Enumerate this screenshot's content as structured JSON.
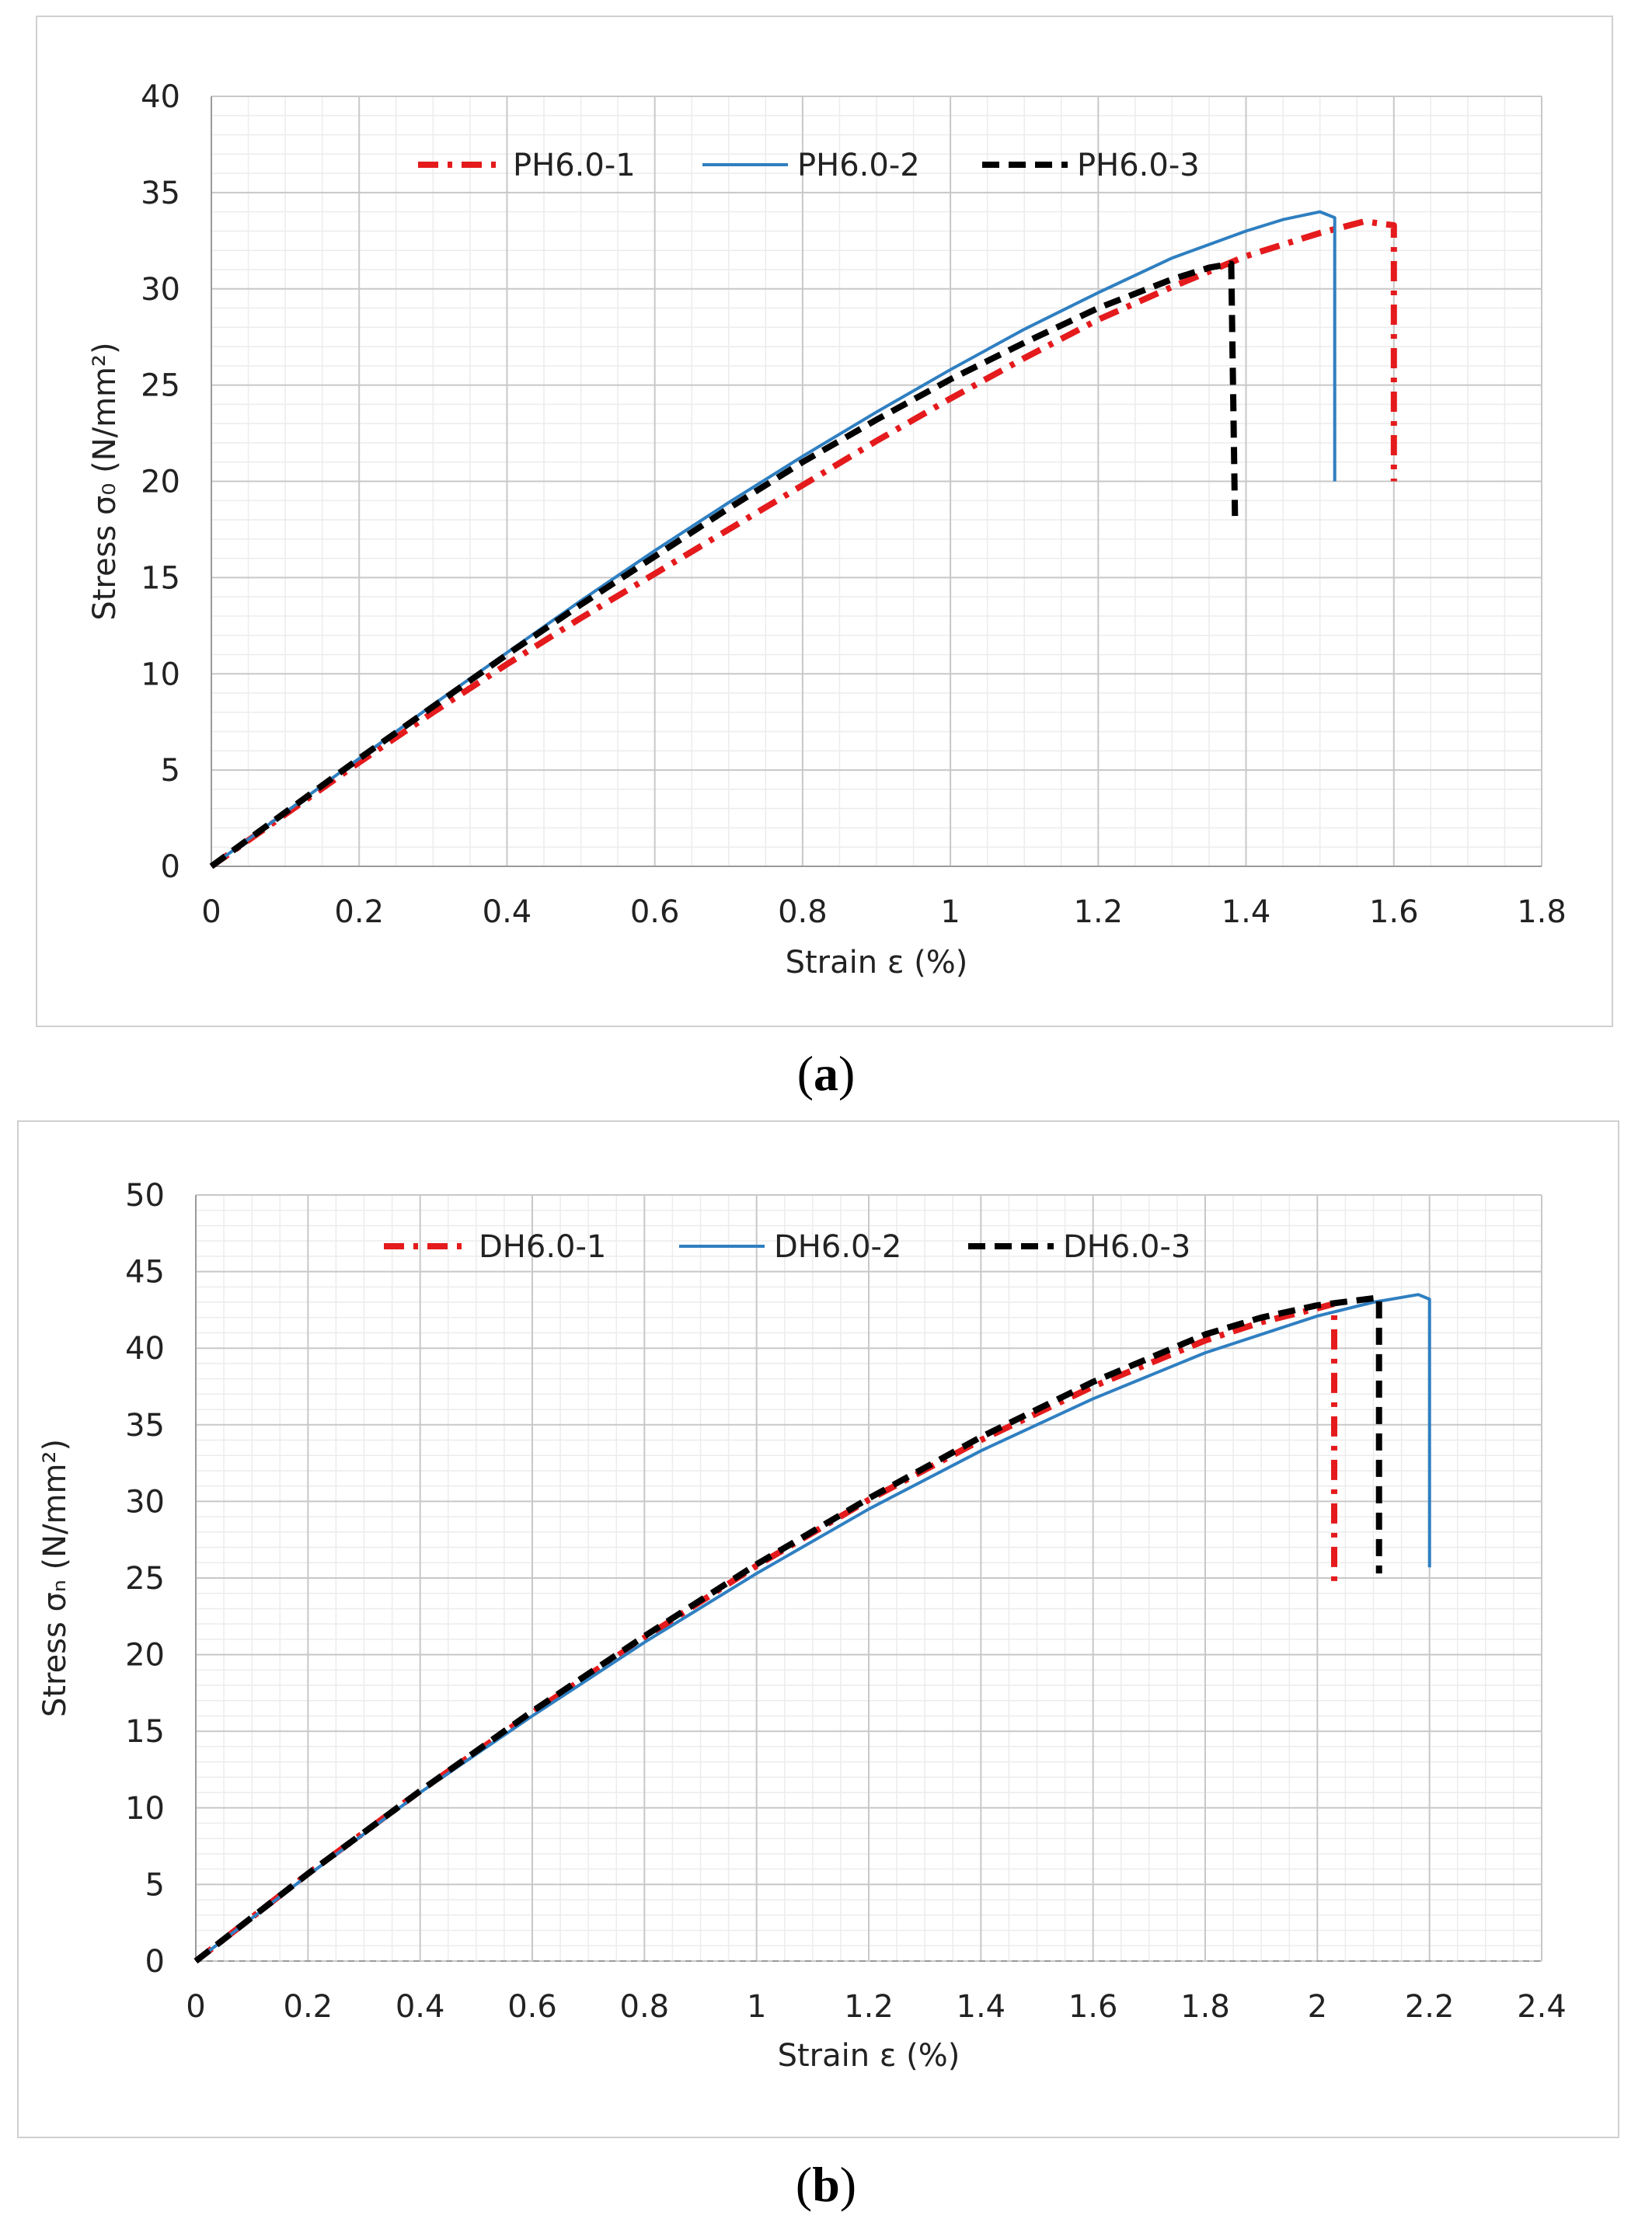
{
  "figure": {
    "caption_a": "a",
    "caption_b": "b"
  },
  "chart_data": [
    {
      "id": "a",
      "type": "line",
      "title": "",
      "xlabel": "Strain ε (%)",
      "ylabel": "Stress σ₀ (N/mm²)",
      "xlim": [
        0,
        1.8
      ],
      "ylim": [
        0,
        40
      ],
      "xticks": [
        "0",
        "0.2",
        "0.4",
        "0.6",
        "0.8",
        "1",
        "1.2",
        "1.4",
        "1.6",
        "1.8"
      ],
      "yticks": [
        "0",
        "5",
        "10",
        "15",
        "20",
        "25",
        "30",
        "35",
        "40"
      ],
      "xtick_values": [
        0,
        0.2,
        0.4,
        0.6,
        0.8,
        1.0,
        1.2,
        1.4,
        1.6,
        1.8
      ],
      "ytick_values": [
        0,
        5,
        10,
        15,
        20,
        25,
        30,
        35,
        40
      ],
      "minor_x_step": 0.05,
      "minor_y_step": 1,
      "grid": true,
      "legend_position": "top",
      "series": [
        {
          "name": "PH6.0-1",
          "color": "#e41a1c",
          "dash": "dashdot",
          "points": [
            [
              0,
              0
            ],
            [
              0.1,
              2.7
            ],
            [
              0.2,
              5.4
            ],
            [
              0.3,
              8.0
            ],
            [
              0.4,
              10.5
            ],
            [
              0.5,
              12.9
            ],
            [
              0.6,
              15.2
            ],
            [
              0.7,
              17.5
            ],
            [
              0.8,
              19.8
            ],
            [
              0.9,
              22.1
            ],
            [
              1.0,
              24.3
            ],
            [
              1.1,
              26.4
            ],
            [
              1.2,
              28.4
            ],
            [
              1.3,
              30.1
            ],
            [
              1.4,
              31.7
            ],
            [
              1.5,
              32.9
            ],
            [
              1.56,
              33.5
            ],
            [
              1.6,
              33.3
            ],
            [
              1.6,
              20.0
            ]
          ]
        },
        {
          "name": "PH6.0-2",
          "color": "#2f7fc1",
          "dash": "solid",
          "points": [
            [
              0,
              0
            ],
            [
              0.1,
              2.8
            ],
            [
              0.2,
              5.6
            ],
            [
              0.3,
              8.4
            ],
            [
              0.4,
              11.1
            ],
            [
              0.5,
              13.8
            ],
            [
              0.6,
              16.4
            ],
            [
              0.7,
              18.9
            ],
            [
              0.8,
              21.3
            ],
            [
              0.9,
              23.6
            ],
            [
              1.0,
              25.8
            ],
            [
              1.1,
              27.9
            ],
            [
              1.2,
              29.8
            ],
            [
              1.3,
              31.6
            ],
            [
              1.4,
              33.0
            ],
            [
              1.45,
              33.6
            ],
            [
              1.5,
              34.0
            ],
            [
              1.52,
              33.7
            ],
            [
              1.52,
              20.0
            ]
          ]
        },
        {
          "name": "PH6.0-3",
          "color": "#000000",
          "dash": "dash",
          "points": [
            [
              0,
              0
            ],
            [
              0.1,
              2.8
            ],
            [
              0.2,
              5.6
            ],
            [
              0.3,
              8.3
            ],
            [
              0.4,
              11.0
            ],
            [
              0.5,
              13.6
            ],
            [
              0.6,
              16.1
            ],
            [
              0.7,
              18.6
            ],
            [
              0.8,
              21.0
            ],
            [
              0.9,
              23.2
            ],
            [
              1.0,
              25.3
            ],
            [
              1.1,
              27.2
            ],
            [
              1.2,
              29.0
            ],
            [
              1.3,
              30.5
            ],
            [
              1.35,
              31.1
            ],
            [
              1.38,
              31.3
            ],
            [
              1.385,
              18.2
            ]
          ]
        }
      ]
    },
    {
      "id": "b",
      "type": "line",
      "title": "",
      "xlabel": "Strain ε (%)",
      "ylabel": "Stress σₙ (N/mm²)",
      "xlim": [
        0,
        2.4
      ],
      "ylim": [
        0,
        50
      ],
      "xticks": [
        "0",
        "0.2",
        "0.4",
        "0.6",
        "0.8",
        "1",
        "1.2",
        "1.4",
        "1.6",
        "1.8",
        "2",
        "2.2",
        "2.4"
      ],
      "yticks": [
        "0",
        "5",
        "10",
        "15",
        "20",
        "25",
        "30",
        "35",
        "40",
        "45",
        "50"
      ],
      "xtick_values": [
        0,
        0.2,
        0.4,
        0.6,
        0.8,
        1.0,
        1.2,
        1.4,
        1.6,
        1.8,
        2.0,
        2.2,
        2.4
      ],
      "ytick_values": [
        0,
        5,
        10,
        15,
        20,
        25,
        30,
        35,
        40,
        45,
        50
      ],
      "minor_x_step": 0.05,
      "minor_y_step": 1,
      "grid": true,
      "legend_position": "top",
      "series": [
        {
          "name": "DH6.0-1",
          "color": "#e41a1c",
          "dash": "dashdot",
          "points": [
            [
              0,
              0
            ],
            [
              0.2,
              5.7
            ],
            [
              0.4,
              11.1
            ],
            [
              0.6,
              16.2
            ],
            [
              0.8,
              21.1
            ],
            [
              1.0,
              25.8
            ],
            [
              1.2,
              30.1
            ],
            [
              1.4,
              34.0
            ],
            [
              1.6,
              37.5
            ],
            [
              1.8,
              40.5
            ],
            [
              1.9,
              41.7
            ],
            [
              2.0,
              42.6
            ],
            [
              2.03,
              42.9
            ],
            [
              2.03,
              24.8
            ]
          ]
        },
        {
          "name": "DH6.0-2",
          "color": "#2f7fc1",
          "dash": "solid",
          "points": [
            [
              0,
              0
            ],
            [
              0.2,
              5.6
            ],
            [
              0.4,
              11.0
            ],
            [
              0.6,
              16.0
            ],
            [
              0.8,
              20.8
            ],
            [
              1.0,
              25.3
            ],
            [
              1.2,
              29.5
            ],
            [
              1.4,
              33.3
            ],
            [
              1.6,
              36.7
            ],
            [
              1.8,
              39.7
            ],
            [
              2.0,
              42.1
            ],
            [
              2.1,
              43.0
            ],
            [
              2.18,
              43.5
            ],
            [
              2.2,
              43.2
            ],
            [
              2.2,
              25.7
            ]
          ]
        },
        {
          "name": "DH6.0-3",
          "color": "#000000",
          "dash": "dash",
          "points": [
            [
              0,
              0
            ],
            [
              0.2,
              5.7
            ],
            [
              0.4,
              11.1
            ],
            [
              0.6,
              16.3
            ],
            [
              0.8,
              21.2
            ],
            [
              1.0,
              25.9
            ],
            [
              1.2,
              30.2
            ],
            [
              1.4,
              34.2
            ],
            [
              1.6,
              37.8
            ],
            [
              1.8,
              40.9
            ],
            [
              1.9,
              42.0
            ],
            [
              2.0,
              42.8
            ],
            [
              2.11,
              43.3
            ],
            [
              2.11,
              25.3
            ]
          ]
        }
      ]
    }
  ]
}
